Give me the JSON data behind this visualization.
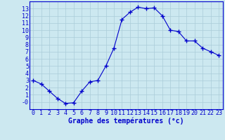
{
  "x": [
    0,
    1,
    2,
    3,
    4,
    5,
    6,
    7,
    8,
    9,
    10,
    11,
    12,
    13,
    14,
    15,
    16,
    17,
    18,
    19,
    20,
    21,
    22,
    23
  ],
  "y": [
    3.0,
    2.5,
    1.5,
    0.5,
    -0.2,
    -0.1,
    1.5,
    2.8,
    3.0,
    5.0,
    7.5,
    11.5,
    12.5,
    13.2,
    13.0,
    13.1,
    12.0,
    10.0,
    9.8,
    8.5,
    8.5,
    7.5,
    7.0,
    6.5
  ],
  "line_color": "#0000cc",
  "marker": "+",
  "marker_size": 4,
  "bg_color": "#cce8f0",
  "grid_color": "#aaccd8",
  "axis_color": "#0000cc",
  "title": "Graphe des températures (°c)",
  "ylim": [
    -1,
    14
  ],
  "xlim": [
    -0.5,
    23.5
  ],
  "yticks": [
    0,
    1,
    2,
    3,
    4,
    5,
    6,
    7,
    8,
    9,
    10,
    11,
    12,
    13
  ],
  "ytick_labels": [
    "-0",
    "1",
    "2",
    "3",
    "4",
    "5",
    "6",
    "7",
    "8",
    "9",
    "10",
    "11",
    "12",
    "13"
  ],
  "xticks": [
    0,
    1,
    2,
    3,
    4,
    5,
    6,
    7,
    8,
    9,
    10,
    11,
    12,
    13,
    14,
    15,
    16,
    17,
    18,
    19,
    20,
    21,
    22,
    23
  ],
  "xtick_labels": [
    "0",
    "1",
    "2",
    "3",
    "4",
    "5",
    "6",
    "7",
    "8",
    "9",
    "10",
    "11",
    "12",
    "13",
    "14",
    "15",
    "16",
    "17",
    "18",
    "19",
    "20",
    "21",
    "22",
    "23"
  ],
  "tick_fontsize": 6,
  "xlabel_fontsize": 7
}
